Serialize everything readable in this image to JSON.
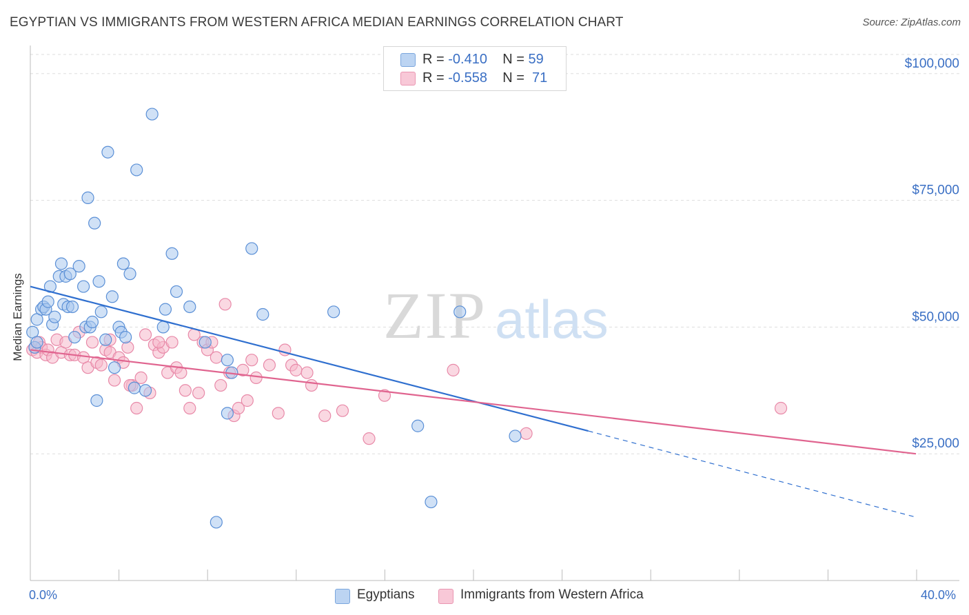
{
  "title": "EGYPTIAN VS IMMIGRANTS FROM WESTERN AFRICA MEDIAN EARNINGS CORRELATION CHART",
  "source": "Source: ZipAtlas.com",
  "watermark": {
    "zip": "ZIP",
    "atlas": "atlas"
  },
  "legend": {
    "rows": [
      {
        "r_label": "R =",
        "r_value": "-0.410",
        "n_label": "N =",
        "n_value": "59"
      },
      {
        "r_label": "R =",
        "r_value": "-0.558",
        "n_label": "N =",
        "n_value": "71"
      }
    ]
  },
  "bottom_legend": [
    "Egyptians",
    "Immigrants from Western Africa"
  ],
  "colors": {
    "blue_fill": "#a9c8ef",
    "blue_stroke": "#5a8fd6",
    "blue_line": "#2f6fcf",
    "pink_fill": "#f5b8cb",
    "pink_stroke": "#e889a8",
    "pink_line": "#e0648f",
    "axis_text": "#3a6fc4",
    "grid": "#dddddd"
  },
  "chart_data": {
    "type": "scatter",
    "title": "EGYPTIAN VS IMMIGRANTS FROM WESTERN AFRICA MEDIAN EARNINGS CORRELATION CHART",
    "xlabel": "",
    "ylabel": "Median Earnings",
    "xlim": [
      0,
      40
    ],
    "ylim": [
      0,
      105000
    ],
    "x_tick_labels": [
      "0.0%",
      "40.0%"
    ],
    "y_ticks": [
      25000,
      50000,
      75000,
      100000
    ],
    "y_tick_labels": [
      "$25,000",
      "$50,000",
      "$75,000",
      "$100,000"
    ],
    "grid": true,
    "series": [
      {
        "name": "Egyptians",
        "r": -0.41,
        "n": 59,
        "trend": {
          "x": [
            0,
            25.2
          ],
          "y": [
            58000,
            29500
          ],
          "dashed_to": [
            40,
            12500
          ]
        },
        "points": [
          [
            0.1,
            49000
          ],
          [
            0.2,
            46000
          ],
          [
            0.3,
            51500
          ],
          [
            0.5,
            53500
          ],
          [
            0.6,
            54000
          ],
          [
            0.7,
            53500
          ],
          [
            0.8,
            55000
          ],
          [
            0.9,
            58000
          ],
          [
            1.0,
            50500
          ],
          [
            1.1,
            52000
          ],
          [
            1.3,
            60000
          ],
          [
            1.4,
            62500
          ],
          [
            1.5,
            54500
          ],
          [
            1.6,
            60000
          ],
          [
            1.7,
            54000
          ],
          [
            1.8,
            60500
          ],
          [
            1.9,
            54000
          ],
          [
            2.0,
            48000
          ],
          [
            2.2,
            62000
          ],
          [
            2.4,
            58000
          ],
          [
            2.5,
            50000
          ],
          [
            2.7,
            50000
          ],
          [
            2.8,
            51000
          ],
          [
            2.9,
            70500
          ],
          [
            3.0,
            35500
          ],
          [
            3.1,
            59000
          ],
          [
            3.2,
            53000
          ],
          [
            3.4,
            47500
          ],
          [
            3.5,
            84500
          ],
          [
            3.7,
            56000
          ],
          [
            3.8,
            42000
          ],
          [
            4.0,
            50000
          ],
          [
            4.1,
            49000
          ],
          [
            4.2,
            62500
          ],
          [
            4.3,
            48000
          ],
          [
            4.5,
            60500
          ],
          [
            4.7,
            38000
          ],
          [
            4.8,
            81000
          ],
          [
            5.2,
            37500
          ],
          [
            5.5,
            92000
          ],
          [
            6.0,
            50000
          ],
          [
            6.1,
            53500
          ],
          [
            6.4,
            64500
          ],
          [
            6.6,
            57000
          ],
          [
            7.2,
            54000
          ],
          [
            7.9,
            47000
          ],
          [
            8.4,
            11500
          ],
          [
            8.9,
            33000
          ],
          [
            8.9,
            43500
          ],
          [
            9.1,
            41000
          ],
          [
            10.0,
            65500
          ],
          [
            10.5,
            52500
          ],
          [
            13.7,
            53000
          ],
          [
            17.5,
            30500
          ],
          [
            18.1,
            15500
          ],
          [
            19.4,
            53000
          ],
          [
            21.9,
            28500
          ],
          [
            0.3,
            47000
          ],
          [
            2.6,
            75500
          ]
        ]
      },
      {
        "name": "Immigrants from Western Africa",
        "r": -0.558,
        "n": 71,
        "trend": {
          "x": [
            0,
            40
          ],
          "y": [
            45500,
            25000
          ]
        },
        "points": [
          [
            0.1,
            45500
          ],
          [
            0.2,
            46000
          ],
          [
            0.3,
            45000
          ],
          [
            0.4,
            47000
          ],
          [
            0.5,
            46000
          ],
          [
            0.7,
            44500
          ],
          [
            0.8,
            45500
          ],
          [
            1.0,
            44000
          ],
          [
            1.2,
            47500
          ],
          [
            1.4,
            45000
          ],
          [
            1.6,
            47000
          ],
          [
            1.8,
            44500
          ],
          [
            2.0,
            44500
          ],
          [
            2.2,
            49000
          ],
          [
            2.4,
            44000
          ],
          [
            2.6,
            42000
          ],
          [
            2.8,
            47000
          ],
          [
            3.0,
            43000
          ],
          [
            3.2,
            42500
          ],
          [
            3.4,
            45500
          ],
          [
            3.6,
            45000
          ],
          [
            3.8,
            39500
          ],
          [
            4.0,
            44000
          ],
          [
            4.2,
            43000
          ],
          [
            4.4,
            46000
          ],
          [
            4.6,
            38500
          ],
          [
            4.8,
            34000
          ],
          [
            5.0,
            40000
          ],
          [
            5.2,
            48500
          ],
          [
            5.4,
            37000
          ],
          [
            5.6,
            46500
          ],
          [
            5.8,
            45000
          ],
          [
            6.0,
            46000
          ],
          [
            6.2,
            41000
          ],
          [
            6.4,
            47000
          ],
          [
            6.6,
            42000
          ],
          [
            6.8,
            41000
          ],
          [
            7.0,
            37500
          ],
          [
            7.2,
            34000
          ],
          [
            7.4,
            48500
          ],
          [
            7.6,
            37000
          ],
          [
            7.8,
            47000
          ],
          [
            8.0,
            45500
          ],
          [
            8.2,
            47000
          ],
          [
            8.4,
            44000
          ],
          [
            8.6,
            38500
          ],
          [
            8.8,
            54500
          ],
          [
            9.0,
            41000
          ],
          [
            9.2,
            32500
          ],
          [
            9.4,
            34000
          ],
          [
            9.6,
            41500
          ],
          [
            9.8,
            35500
          ],
          [
            10.0,
            43500
          ],
          [
            10.2,
            40000
          ],
          [
            10.8,
            42500
          ],
          [
            11.2,
            33000
          ],
          [
            11.5,
            45500
          ],
          [
            11.8,
            42500
          ],
          [
            12.0,
            41500
          ],
          [
            12.5,
            41000
          ],
          [
            12.7,
            38500
          ],
          [
            13.3,
            32500
          ],
          [
            14.1,
            33500
          ],
          [
            15.3,
            28000
          ],
          [
            16.0,
            36500
          ],
          [
            19.1,
            41500
          ],
          [
            22.4,
            29000
          ],
          [
            33.9,
            34000
          ],
          [
            4.5,
            38500
          ],
          [
            3.6,
            47500
          ],
          [
            5.8,
            47000
          ]
        ]
      }
    ]
  }
}
